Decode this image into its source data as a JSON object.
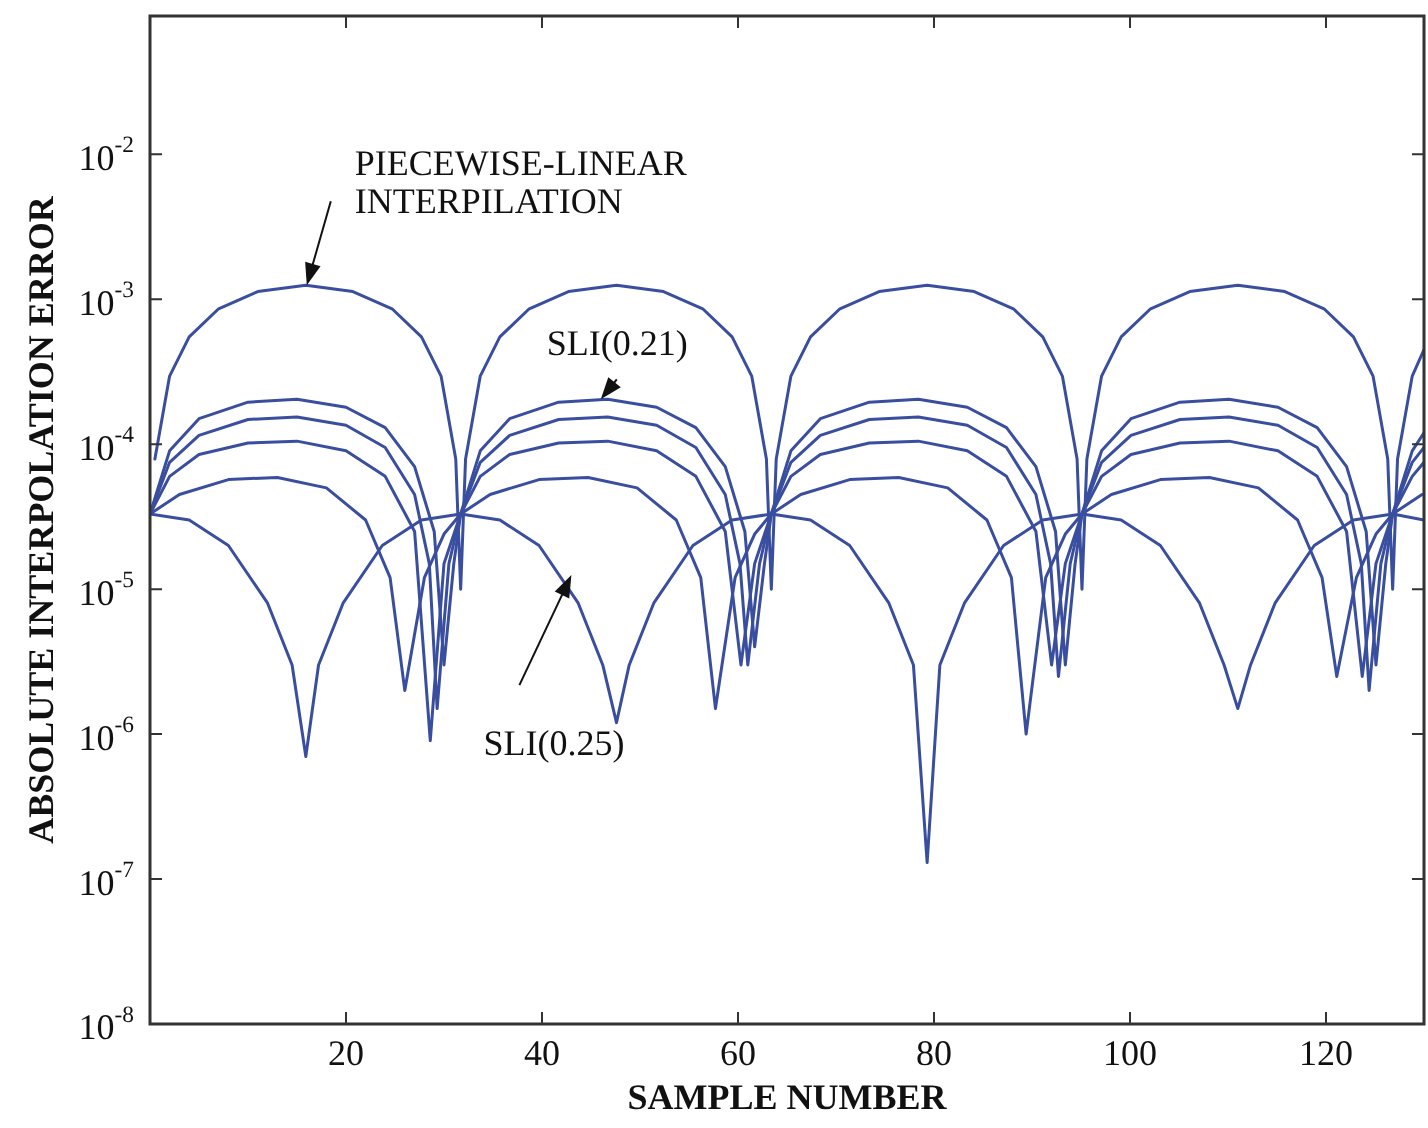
{
  "chart_data": {
    "type": "line",
    "xlabel": "SAMPLE NUMBER",
    "ylabel": "ABSOLUTE INTERPOLATION ERROR",
    "log": "y",
    "grid": false,
    "legend": false,
    "marker": "none",
    "line_style": "solid",
    "xlim": [
      0,
      130
    ],
    "xticks": [
      20,
      40,
      60,
      80,
      100,
      120
    ],
    "ylim": [
      1e-08,
      0.09
    ],
    "yticks": [
      {
        "value": 1e-08,
        "label": "10$^{-8}$"
      },
      {
        "value": 1e-07,
        "label": "10$^{-7}$"
      },
      {
        "value": 1e-06,
        "label": "10$^{-6}$"
      },
      {
        "value": 1e-05,
        "label": "10$^{-5}$"
      },
      {
        "value": 0.0001,
        "label": "10$^{-4}$"
      },
      {
        "value": 0.001,
        "label": "10$^{-3}$"
      },
      {
        "value": 0.01,
        "label": "10$^{-2}$"
      }
    ],
    "annotations": [
      {
        "text": "PIECEWISE-LINEAR\nINTERPILATION",
        "x": 16,
        "y": 0.00125
      },
      {
        "text": "SLI(0.21)",
        "x": 46,
        "y": 0.000204
      },
      {
        "text": "SLI(0.25)",
        "x": 43,
        "y": 1.25e-05
      }
    ],
    "series": [
      {
        "color": "#3a4ea0",
        "x": [
          0.5,
          2,
          4,
          7,
          11,
          15.9,
          20.7,
          24.7,
          27.7,
          29.7,
          31.2,
          31.7,
          32.2,
          33.7,
          35.7,
          38.7,
          42.7,
          47.6,
          52.4,
          56.4,
          59.4,
          61.4,
          62.9,
          63.4,
          63.9,
          65.4,
          67.4,
          70.4,
          74.4,
          79.3,
          84.1,
          88.1,
          91.1,
          93.1,
          94.6,
          95.1,
          95.6,
          97.1,
          99.1,
          102.1,
          106.1,
          111,
          115.8,
          119.8,
          122.8,
          124.8,
          126.3,
          126.8,
          127.3,
          128.8,
          130
        ],
        "values": [
          7.9e-05,
          0.000295,
          0.00055,
          0.00086,
          0.00113,
          0.00125,
          0.00113,
          0.00086,
          0.00055,
          0.000295,
          7.9e-05,
          1e-05,
          7.9e-05,
          0.000295,
          0.00055,
          0.00086,
          0.00113,
          0.00125,
          0.00113,
          0.00086,
          0.00055,
          0.000295,
          7.9e-05,
          1e-05,
          7.9e-05,
          0.000295,
          0.00055,
          0.00086,
          0.00113,
          0.00125,
          0.00113,
          0.00086,
          0.00055,
          0.000295,
          7.9e-05,
          1e-05,
          7.9e-05,
          0.000295,
          0.00055,
          0.00086,
          0.00113,
          0.00125,
          0.00113,
          0.00086,
          0.00055,
          0.000295,
          7.9e-05,
          1e-05,
          7.9e-05,
          0.000295,
          0.00045
        ]
      },
      {
        "color": "#3a4ea0",
        "x": [
          0,
          2,
          5,
          10,
          15,
          20,
          24,
          27,
          29,
          30,
          31,
          31.7,
          33.7,
          36.7,
          41.7,
          46.7,
          51.7,
          55.7,
          58.7,
          60.7,
          61.7,
          62.7,
          63.4,
          65.4,
          68.4,
          73.4,
          78.4,
          83.4,
          87.4,
          90.4,
          92.4,
          93.4,
          94.4,
          95.1,
          97.1,
          100.1,
          105.1,
          110.1,
          115.1,
          119.1,
          122.1,
          124.1,
          125.1,
          126.1,
          126.8,
          128.8,
          130
        ],
        "values": [
          3.3e-05,
          9e-05,
          0.00015,
          0.000195,
          0.000204,
          0.00018,
          0.00013,
          7e-05,
          2.5e-05,
          3e-06,
          1.5e-05,
          3.3e-05,
          9e-05,
          0.00015,
          0.000195,
          0.000204,
          0.00018,
          0.00013,
          7e-05,
          2.5e-05,
          4e-06,
          1.5e-05,
          3.3e-05,
          9e-05,
          0.00015,
          0.000195,
          0.000204,
          0.00018,
          0.00013,
          7e-05,
          2.5e-05,
          3e-06,
          1.5e-05,
          3.3e-05,
          9e-05,
          0.00015,
          0.000195,
          0.000204,
          0.00018,
          0.00013,
          7e-05,
          2.5e-05,
          3e-06,
          1.5e-05,
          3.3e-05,
          9e-05,
          0.00012
        ]
      },
      {
        "color": "#3a4ea0",
        "x": [
          0,
          2,
          5,
          10,
          15,
          20,
          24,
          27,
          28.5,
          29.3,
          30.5,
          31.7,
          33.7,
          36.7,
          41.7,
          46.7,
          51.7,
          55.7,
          58.7,
          60.2,
          61,
          62.2,
          63.4,
          65.4,
          68.4,
          73.4,
          78.4,
          83.4,
          87.4,
          90.4,
          91.9,
          92.7,
          93.9,
          95.1,
          97.1,
          100.1,
          105.1,
          110.1,
          115.1,
          119.1,
          122.1,
          123.6,
          124.4,
          125.6,
          126.8,
          128.8,
          130
        ],
        "values": [
          3.3e-05,
          7.5e-05,
          0.000115,
          0.000148,
          0.000154,
          0.000135,
          9.5e-05,
          4.5e-05,
          1.5e-05,
          1.5e-06,
          1.5e-05,
          3.3e-05,
          7.5e-05,
          0.000115,
          0.000148,
          0.000154,
          0.000135,
          9.5e-05,
          4.5e-05,
          1.5e-05,
          3e-06,
          1.5e-05,
          3.3e-05,
          7.5e-05,
          0.000115,
          0.000148,
          0.000154,
          0.000135,
          9.5e-05,
          4.5e-05,
          1.5e-05,
          2.5e-06,
          1.5e-05,
          3.3e-05,
          7.5e-05,
          0.000115,
          0.000148,
          0.000154,
          0.000135,
          9.5e-05,
          4.5e-05,
          1.5e-05,
          2e-06,
          1.5e-05,
          3.3e-05,
          7.5e-05,
          9.5e-05
        ]
      },
      {
        "color": "#3a4ea0",
        "x": [
          0,
          2,
          5,
          10,
          15,
          20,
          24,
          27,
          28.6,
          30,
          31.7,
          33.7,
          36.7,
          41.7,
          46.7,
          51.7,
          55.7,
          58.7,
          60.3,
          61.7,
          63.4,
          65.4,
          68.4,
          73.4,
          78.4,
          83.4,
          87.4,
          90.4,
          92,
          93.4,
          95.1,
          97.1,
          100.1,
          105.1,
          110.1,
          115.1,
          119.1,
          122.1,
          123.7,
          125.1,
          126.8,
          128.8,
          130
        ],
        "values": [
          3.3e-05,
          6e-05,
          8.5e-05,
          0.000102,
          0.000105,
          9e-05,
          6e-05,
          2.5e-05,
          9e-07,
          1.5e-05,
          3.3e-05,
          6e-05,
          8.5e-05,
          0.000102,
          0.000105,
          9e-05,
          6e-05,
          2.5e-05,
          3e-06,
          1.5e-05,
          3.3e-05,
          6e-05,
          8.5e-05,
          0.000102,
          0.000105,
          9e-05,
          6e-05,
          2.5e-05,
          3e-06,
          1.5e-05,
          3.3e-05,
          6e-05,
          8.5e-05,
          0.000102,
          0.000105,
          9e-05,
          6e-05,
          2.5e-05,
          2.5e-06,
          1.5e-05,
          3.3e-05,
          6e-05,
          7.5e-05
        ]
      },
      {
        "color": "#3a4ea0",
        "x": [
          0,
          3,
          8,
          13,
          18,
          22,
          24.5,
          26,
          28,
          30,
          31.7,
          34.7,
          39.7,
          44.7,
          49.7,
          53.7,
          56.2,
          57.7,
          59.7,
          61.7,
          63.4,
          66.4,
          71.4,
          76.4,
          81.4,
          85.4,
          87.9,
          89.4,
          91.4,
          93.4,
          95.1,
          98.1,
          103.1,
          108.1,
          113.1,
          117.1,
          119.6,
          121.1,
          123.1,
          125.1,
          126.8,
          129.8
        ],
        "values": [
          3.3e-05,
          4.5e-05,
          5.7e-05,
          5.9e-05,
          5e-05,
          3e-05,
          1.2e-05,
          2e-06,
          1.2e-05,
          2.4e-05,
          3.3e-05,
          4.5e-05,
          5.7e-05,
          5.9e-05,
          5e-05,
          3e-05,
          1.2e-05,
          1.5e-06,
          1.2e-05,
          2.4e-05,
          3.3e-05,
          4.5e-05,
          5.7e-05,
          5.9e-05,
          5e-05,
          3e-05,
          1.2e-05,
          1e-06,
          1.2e-05,
          2.4e-05,
          3.3e-05,
          4.5e-05,
          5.7e-05,
          5.9e-05,
          5e-05,
          3e-05,
          1.2e-05,
          2.5e-06,
          1.2e-05,
          2.4e-05,
          3.3e-05,
          4.5e-05
        ]
      },
      {
        "color": "#3a4ea0",
        "x": [
          0,
          4,
          8,
          12,
          14.5,
          15.9,
          17.2,
          19.7,
          23.7,
          27.7,
          31.7,
          35.7,
          39.7,
          43.7,
          46.2,
          47.6,
          48.9,
          51.4,
          55.4,
          59.4,
          63.4,
          67.4,
          71.4,
          75.4,
          77.9,
          79.3,
          80.6,
          83.1,
          87.1,
          91.1,
          95.1,
          99.1,
          103.1,
          107.1,
          109.6,
          111,
          112.3,
          114.8,
          118.8,
          122.8,
          126.8,
          130
        ],
        "values": [
          3.3e-05,
          3e-05,
          2e-05,
          8e-06,
          3e-06,
          7e-07,
          3e-06,
          8e-06,
          2e-05,
          3e-05,
          3.3e-05,
          3e-05,
          2e-05,
          8e-06,
          3e-06,
          1.2e-06,
          3e-06,
          8e-06,
          2e-05,
          3e-05,
          3.3e-05,
          3e-05,
          2e-05,
          8e-06,
          3e-06,
          1.3e-07,
          3e-06,
          8e-06,
          2e-05,
          3e-05,
          3.3e-05,
          3e-05,
          2e-05,
          8e-06,
          3e-06,
          1.5e-06,
          3e-06,
          8e-06,
          2e-05,
          3e-05,
          3.3e-05,
          3e-05
        ]
      }
    ]
  }
}
